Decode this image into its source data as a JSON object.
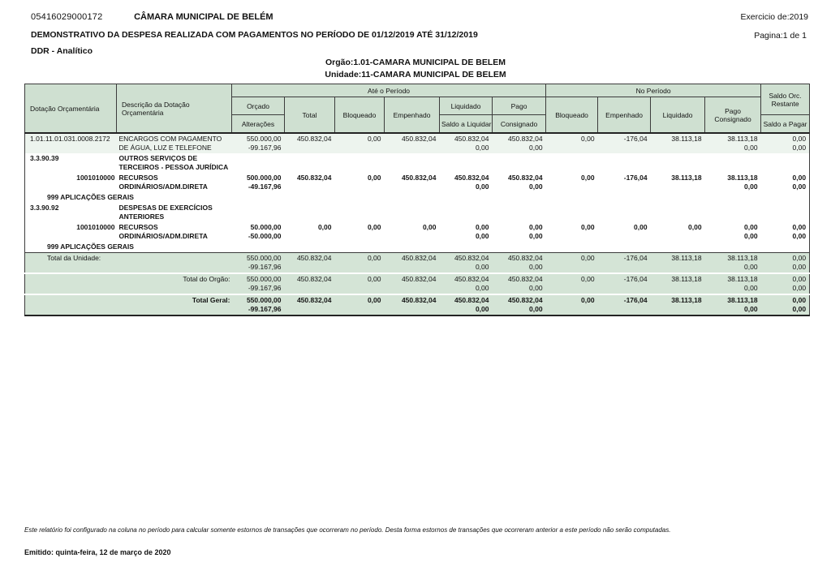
{
  "header": {
    "doc_number": "05416029000172",
    "entity_name": "CÂMARA MUNICIPAL DE BELÉM",
    "exercise": "Exercicio de:2019",
    "report_title": "DEMONSTRATIVO DA DESPESA REALIZADA COM PAGAMENTOS NO PERÍODO DE 01/12/2019 ATÉ 31/12/2019",
    "page_info": "Pagina:1 de 1",
    "report_mode": "DDR - Analítico",
    "organ_line": "Orgão:1.01-CAMARA MUNICIPAL DE BELEM",
    "unit_line": "Unidade:11-CAMARA MUNICIPAL DE BELEM"
  },
  "colors": {
    "header_bg": "#cfe0d1",
    "first_row_tint": "#edf4ee",
    "totals_bg": "#d4e4d6",
    "border": "#3c3c3c"
  },
  "table": {
    "headers": {
      "dotacao": "Dotação Orçamentária",
      "descricao": "Descrição da Dotação Orçamentária",
      "ate_periodo": "Até o Período",
      "no_periodo": "No Período",
      "orcado": "Orçado",
      "alteracoes": "Alterações",
      "total": "Total",
      "bloqueado": "Bloqueado",
      "empenhado": "Empenhado",
      "liquidado": "Liquidado",
      "saldo_liquidar": "Saldo a Liquidar",
      "pago": "Pago",
      "consignado": "Consignado",
      "np_bloqueado": "Bloqueado",
      "np_empenhado": "Empenhado",
      "np_liquidado": "Liquidado",
      "np_pago": "Pago",
      "np_consignado": "Consignado",
      "saldo_orc_1": "Saldo Orc.",
      "saldo_orc_2": "Restante",
      "saldo_pagar": "Saldo a Pagar"
    },
    "rows": [
      {
        "name": "row-dotacao-2172",
        "bg": "tint",
        "bold": false,
        "c1": {
          "lines": [
            "1.01.11.01.031.0008.2172"
          ]
        },
        "c2": {
          "lines": [
            "ENCARGOS COM PAGAMENTO",
            "DE ÁGUA, LUZ E TELEFONE"
          ]
        },
        "cols": [
          [
            "550.000,00",
            "-99.167,96"
          ],
          [
            "450.832,04"
          ],
          [
            "0,00"
          ],
          [
            "450.832,04"
          ],
          [
            "450.832,04",
            "0,00"
          ],
          [
            "450.832,04",
            "0,00"
          ],
          [
            "0,00"
          ],
          [
            "-176,04"
          ],
          [
            "38.113,18"
          ],
          [
            "38.113,18",
            "0,00"
          ],
          [
            "0,00",
            "0,00"
          ]
        ]
      },
      {
        "name": "row-natureza-333039",
        "bg": "white",
        "bold": true,
        "c1": {
          "lines": [
            "3.3.90.39"
          ]
        },
        "c2": {
          "lines": [
            "OUTROS SERVIÇOS DE",
            "TERCEIROS - PESSOA JURÍDICA"
          ]
        },
        "cols": []
      },
      {
        "name": "row-fonte-recursos-1",
        "bg": "white",
        "bold": true,
        "c1": {
          "lines": [
            "1001010000"
          ],
          "align": "right"
        },
        "c2": {
          "lines": [
            "RECURSOS",
            "ORDINÁRIOS/ADM.DIRETA"
          ]
        },
        "cols": [
          [
            "500.000,00",
            "-49.167,96"
          ],
          [
            "450.832,04"
          ],
          [
            "0,00"
          ],
          [
            "450.832,04"
          ],
          [
            "450.832,04",
            "0,00"
          ],
          [
            "450.832,04",
            "0,00"
          ],
          [
            "0,00"
          ],
          [
            "-176,04"
          ],
          [
            "38.113,18"
          ],
          [
            "38.113,18",
            "0,00"
          ],
          [
            "0,00",
            "0,00"
          ]
        ]
      },
      {
        "name": "row-aplicacoes-1",
        "bg": "white",
        "bold": true,
        "c1": {
          "lines": [
            "999 APLICAÇÕES GERAIS"
          ],
          "indent": true
        },
        "c2": {
          "lines": []
        },
        "cols": []
      },
      {
        "name": "row-natureza-339092",
        "bg": "white",
        "bold": true,
        "c1": {
          "lines": [
            "3.3.90.92"
          ]
        },
        "c2": {
          "lines": [
            "DESPESAS DE EXERCÍCIOS",
            "ANTERIORES"
          ]
        },
        "cols": []
      },
      {
        "name": "row-fonte-recursos-2",
        "bg": "white",
        "bold": true,
        "c1": {
          "lines": [
            "1001010000"
          ],
          "align": "right"
        },
        "c2": {
          "lines": [
            "RECURSOS",
            "ORDINÁRIOS/ADM.DIRETA"
          ]
        },
        "cols": [
          [
            "50.000,00",
            "-50.000,00"
          ],
          [
            "0,00"
          ],
          [
            "0,00"
          ],
          [
            "0,00"
          ],
          [
            "0,00",
            "0,00"
          ],
          [
            "0,00",
            "0,00"
          ],
          [
            "0,00"
          ],
          [
            "0,00"
          ],
          [
            "0,00"
          ],
          [
            "0,00",
            "0,00"
          ],
          [
            "0,00",
            "0,00"
          ]
        ]
      },
      {
        "name": "row-aplicacoes-2",
        "bg": "white",
        "bold": true,
        "c1": {
          "lines": [
            "999 APLICAÇÕES GERAIS"
          ],
          "indent": true
        },
        "c2": {
          "lines": []
        },
        "cols": []
      },
      {
        "name": "row-total-unidade",
        "bg": "green",
        "bold": false,
        "sep": "dark",
        "c1": {
          "lines": [
            "Total da Unidade:"
          ],
          "indent": true
        },
        "c2": {
          "lines": []
        },
        "cols": [
          [
            "550.000,00",
            "-99.167,96"
          ],
          [
            "450.832,04"
          ],
          [
            "0,00"
          ],
          [
            "450.832,04"
          ],
          [
            "450.832,04",
            "0,00"
          ],
          [
            "450.832,04",
            "0,00"
          ],
          [
            "0,00"
          ],
          [
            "-176,04"
          ],
          [
            "38.113,18"
          ],
          [
            "38.113,18",
            "0,00"
          ],
          [
            "0,00",
            "0,00"
          ]
        ]
      },
      {
        "name": "row-total-orgao",
        "bg": "green",
        "bold": false,
        "sep": "white",
        "c1": {
          "lines": []
        },
        "c2": {
          "lines": [
            "Total do Orgão:"
          ],
          "align": "right"
        },
        "cols": [
          [
            "550.000,00",
            "-99.167,96"
          ],
          [
            "450.832,04"
          ],
          [
            "0,00"
          ],
          [
            "450.832,04"
          ],
          [
            "450.832,04",
            "0,00"
          ],
          [
            "450.832,04",
            "0,00"
          ],
          [
            "0,00"
          ],
          [
            "-176,04"
          ],
          [
            "38.113,18"
          ],
          [
            "38.113,18",
            "0,00"
          ],
          [
            "0,00",
            "0,00"
          ]
        ]
      },
      {
        "name": "row-total-geral",
        "bg": "green",
        "bold": true,
        "sep": "white",
        "c1": {
          "lines": []
        },
        "c2": {
          "lines": [
            "Total Geral:"
          ],
          "align": "right"
        },
        "cols": [
          [
            "550.000,00",
            "-99.167,96"
          ],
          [
            "450.832,04"
          ],
          [
            "0,00"
          ],
          [
            "450.832,04"
          ],
          [
            "450.832,04",
            "0,00"
          ],
          [
            "450.832,04",
            "0,00"
          ],
          [
            "0,00"
          ],
          [
            "-176,04"
          ],
          [
            "38.113,18"
          ],
          [
            "38.113,18",
            "0,00"
          ],
          [
            "0,00",
            "0,00"
          ]
        ]
      }
    ]
  },
  "footer": {
    "note": "Este relatório foi configurado na coluna no período para calcular somente estornos de transações que ocorreram no período. Desta forma estornos de transações que ocorreram anterior a este período não serão computadas.",
    "emitted": "Emitido: quinta-feira, 12 de março de 2020"
  }
}
